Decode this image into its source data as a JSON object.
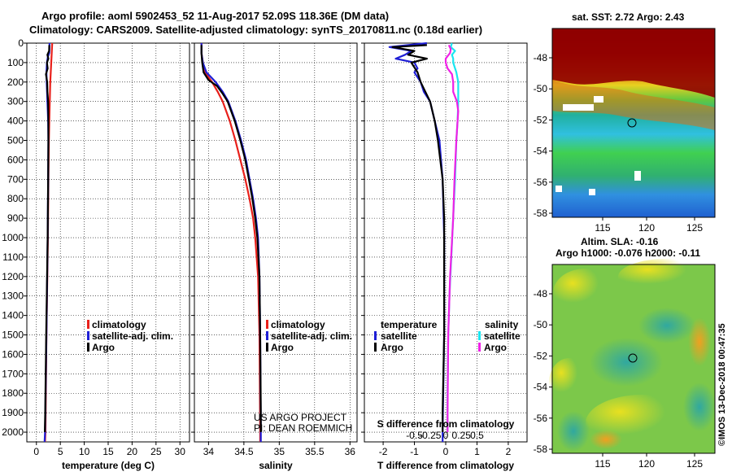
{
  "header": {
    "title_line1": "Argo profile: aoml 5902453_52 11-Aug-2017 52.09S 118.36E (DM data)",
    "title_line2": "Climatology: CARS2009. Satellite-adjusted climatology: synTS_20170811.nc (0.18d earlier)"
  },
  "colors": {
    "climatology": "#e8201b",
    "satellite": "#1f1fd6",
    "argo": "#000000",
    "sat_salinity": "#19e6f0",
    "argo_salinity": "#f020e6"
  },
  "depth_axis": {
    "label": "",
    "min": 0,
    "max": 2050,
    "ticks": [
      "0",
      "100",
      "200",
      "300",
      "400",
      "500",
      "600",
      "700",
      "800",
      "900",
      "1000",
      "1100",
      "1200",
      "1300",
      "1400",
      "1500",
      "1600",
      "1700",
      "1800",
      "1900",
      "2000"
    ]
  },
  "chart_data": [
    {
      "type": "line",
      "name": "temperature-panel",
      "xlabel": "temperature (deg C)",
      "xlim": [
        -2,
        32
      ],
      "xticks": [
        0,
        5,
        10,
        15,
        20,
        25,
        30
      ],
      "ylim": [
        0,
        2050
      ],
      "legend": [
        "climatology",
        "satellite-adj. clim.",
        "Argo"
      ],
      "series": [
        {
          "name": "climatology",
          "depth": [
            0,
            50,
            100,
            150,
            200,
            300,
            400,
            500,
            700,
            1000,
            1500,
            2000,
            2050
          ],
          "values": [
            3.3,
            3.2,
            3.1,
            3.0,
            2.9,
            2.8,
            2.7,
            2.6,
            2.5,
            2.4,
            2.1,
            1.9,
            1.8
          ]
        },
        {
          "name": "satellite-adj. clim.",
          "depth": [
            0,
            50,
            70,
            100,
            150,
            200,
            300,
            400,
            500,
            700,
            1000,
            1500,
            2000,
            2050
          ],
          "values": [
            2.75,
            2.7,
            2.4,
            2.2,
            2.1,
            2.15,
            2.3,
            2.45,
            2.5,
            2.45,
            2.35,
            2.1,
            1.8,
            1.7
          ]
        },
        {
          "name": "Argo",
          "depth": [
            10,
            40,
            60,
            80,
            100,
            130,
            160,
            200,
            250,
            300,
            400,
            500,
            700,
            1000,
            1500,
            1900,
            2000
          ],
          "values": [
            2.7,
            2.65,
            2.3,
            2.5,
            2.2,
            2.35,
            2.0,
            2.25,
            2.3,
            2.45,
            2.5,
            2.5,
            2.45,
            2.35,
            2.05,
            1.85,
            1.75
          ]
        }
      ]
    },
    {
      "type": "line",
      "name": "salinity-panel",
      "xlabel": "salinity",
      "xlim": [
        33.8,
        36.1
      ],
      "xticks": [
        34,
        34.5,
        35,
        35.5,
        36
      ],
      "ylim": [
        0,
        2050
      ],
      "legend": [
        "climatology",
        "satellite-adj. clim.",
        "Argo"
      ],
      "series": [
        {
          "name": "climatology",
          "depth": [
            0,
            50,
            100,
            150,
            200,
            250,
            300,
            400,
            500,
            600,
            700,
            800,
            900,
            1000,
            1200,
            1500,
            2000,
            2050
          ],
          "values": [
            33.9,
            33.9,
            33.92,
            33.95,
            34.05,
            34.13,
            34.2,
            34.3,
            34.38,
            34.45,
            34.52,
            34.58,
            34.63,
            34.66,
            34.7,
            34.72,
            34.73,
            34.73
          ]
        },
        {
          "name": "satellite-adj. clim.",
          "depth": [
            0,
            50,
            100,
            150,
            200,
            250,
            300,
            400,
            500,
            600,
            700,
            800,
            900,
            1000,
            1200,
            1500,
            2000,
            2050
          ],
          "values": [
            33.9,
            33.9,
            33.92,
            33.97,
            34.1,
            34.2,
            34.28,
            34.38,
            34.46,
            34.53,
            34.58,
            34.63,
            34.67,
            34.7,
            34.72,
            34.73,
            34.74,
            34.74
          ]
        },
        {
          "name": "Argo",
          "depth": [
            10,
            50,
            100,
            150,
            190,
            220,
            260,
            300,
            400,
            500,
            600,
            700,
            800,
            900,
            1000,
            1200,
            1500,
            1900,
            2000
          ],
          "values": [
            33.9,
            33.9,
            33.91,
            33.93,
            34.0,
            34.12,
            34.2,
            34.27,
            34.37,
            34.45,
            34.52,
            34.57,
            34.62,
            34.66,
            34.69,
            34.72,
            34.73,
            34.74,
            34.74
          ]
        }
      ],
      "annotation_line1": "US ARGO PROJECT",
      "annotation_line2": "PI: DEAN ROEMMICH"
    },
    {
      "type": "line",
      "name": "difference-panel",
      "xlabel": "T difference from climatology",
      "top_xlabel": "S difference from climatology",
      "xlim": [
        -2.6,
        2.6
      ],
      "xticks": [
        -2,
        -1,
        0,
        1,
        2
      ],
      "top_xticks": [
        -0.5,
        -0.25,
        0,
        0.25,
        0.5
      ],
      "top_xtick_labels": [
        "-0.5",
        "-0.25",
        "0",
        "0.25",
        "0.5"
      ],
      "ylim": [
        0,
        2050
      ],
      "legend_temperature_title": "temperature",
      "legend_salinity_title": "salinity",
      "legend_temperature": [
        "satellite",
        "Argo"
      ],
      "legend_salinity": [
        "satellite",
        "Argo"
      ],
      "series": [
        {
          "name": "T satellite",
          "depth": [
            0,
            20,
            40,
            60,
            80,
            100,
            130,
            150,
            200,
            250,
            300,
            400,
            500,
            700,
            1000,
            1500,
            2000,
            2050
          ],
          "values": [
            -0.6,
            -1.8,
            -1.1,
            -1.3,
            -1.6,
            -1.0,
            -0.9,
            -1.0,
            -0.8,
            -0.7,
            -0.5,
            -0.35,
            -0.2,
            -0.1,
            -0.05,
            -0.05,
            -0.1,
            -0.1
          ]
        },
        {
          "name": "T Argo",
          "depth": [
            10,
            20,
            40,
            60,
            80,
            100,
            150,
            200,
            250,
            300,
            400,
            500,
            700,
            900,
            1200,
            1500,
            1900,
            2000
          ],
          "values": [
            -0.6,
            -1.7,
            -1.0,
            -1.2,
            -0.6,
            -1.1,
            -0.9,
            -0.8,
            -0.65,
            -0.5,
            -0.35,
            -0.25,
            -0.1,
            -0.05,
            -0.05,
            -0.05,
            -0.1,
            -0.1
          ]
        },
        {
          "name": "S satellite",
          "depth": [
            0,
            20,
            40,
            60,
            80,
            100,
            150,
            200,
            300,
            400,
            500,
            700,
            900,
            1100,
            1300,
            1500,
            1800,
            2000
          ],
          "values": [
            0.1,
            0.08,
            0.15,
            0.1,
            0.12,
            0.12,
            0.17,
            0.2,
            0.2,
            0.19,
            0.17,
            0.15,
            0.12,
            0.09,
            0.06,
            0.04,
            0.03,
            0.03
          ]
        },
        {
          "name": "S Argo",
          "depth": [
            10,
            30,
            50,
            80,
            100,
            130,
            160,
            200,
            250,
            300,
            350,
            400,
            500,
            700,
            900,
            1200,
            1500,
            1900,
            2000
          ],
          "values": [
            0.05,
            0.08,
            0.07,
            0.0,
            0.0,
            0.03,
            0.1,
            0.12,
            0.12,
            0.18,
            0.2,
            0.19,
            0.17,
            0.14,
            0.12,
            0.07,
            0.04,
            0.03,
            0.03
          ]
        }
      ]
    }
  ],
  "maps": {
    "sst_title": "sat. SST: 2.72 Argo: 2.43",
    "sla_title_line1": "Altim. SLA: -0.16",
    "sla_title_line2": "Argo h1000: -0.076 h2000: -0.11",
    "lon_ticks": [
      "115",
      "120",
      "125"
    ],
    "lat_ticks": [
      "-48",
      "-50",
      "-52",
      "-54",
      "-56",
      "-58"
    ],
    "credit": "©IMOS 13-Dec-2018 00:47:35"
  }
}
